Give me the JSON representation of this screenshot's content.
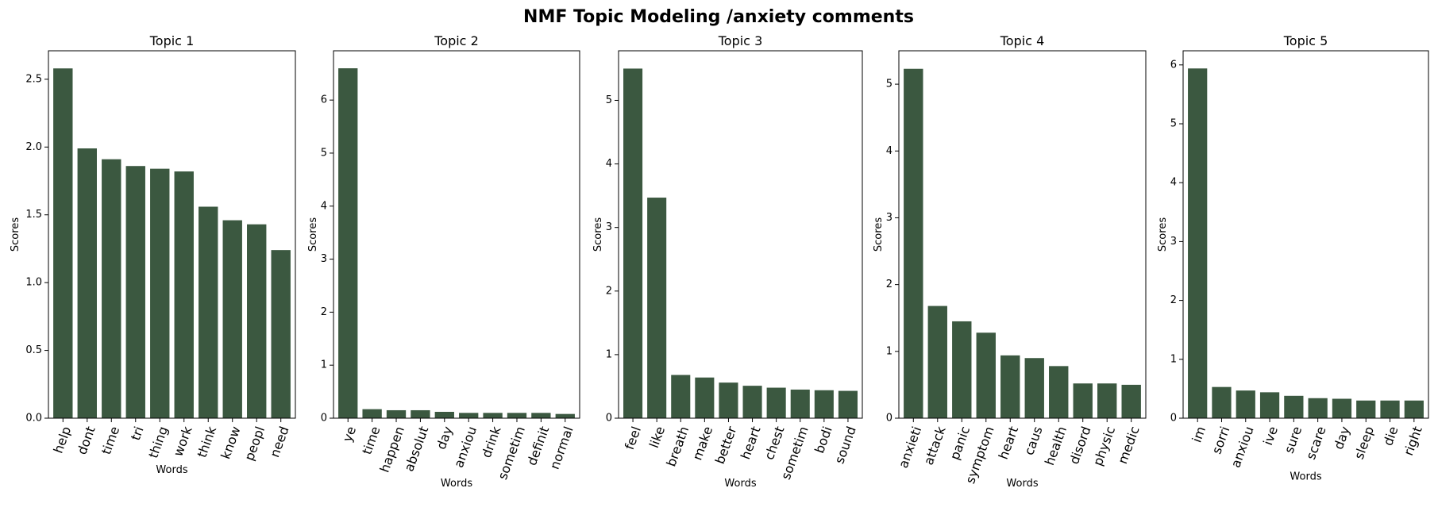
{
  "figure": {
    "suptitle": "NMF Topic Modeling /anxiety comments",
    "bar_color": "#3b5840"
  },
  "chart_data": [
    {
      "type": "bar",
      "title": "Topic 1",
      "xlabel": "Words",
      "ylabel": "Scores",
      "categories": [
        "help",
        "dont",
        "time",
        "tri",
        "thing",
        "work",
        "think",
        "know",
        "peopl",
        "need"
      ],
      "values": [
        2.58,
        1.99,
        1.91,
        1.86,
        1.84,
        1.82,
        1.56,
        1.46,
        1.43,
        1.24
      ],
      "ylim": [
        0,
        2.71
      ],
      "yticks": [
        0.0,
        0.5,
        1.0,
        1.5,
        2.0,
        2.5
      ],
      "ytick_labels": [
        "0.0",
        "0.5",
        "1.0",
        "1.5",
        "2.0",
        "2.5"
      ]
    },
    {
      "type": "bar",
      "title": "Topic 2",
      "xlabel": "Words",
      "ylabel": "Scores",
      "categories": [
        "ye",
        "time",
        "happen",
        "absolut",
        "day",
        "anxiou",
        "drink",
        "sometim",
        "definit",
        "normal"
      ],
      "values": [
        6.6,
        0.17,
        0.15,
        0.15,
        0.12,
        0.1,
        0.1,
        0.1,
        0.1,
        0.08
      ],
      "ylim": [
        0,
        6.93
      ],
      "yticks": [
        0,
        1,
        2,
        3,
        4,
        5,
        6
      ],
      "ytick_labels": [
        "0",
        "1",
        "2",
        "3",
        "4",
        "5",
        "6"
      ]
    },
    {
      "type": "bar",
      "title": "Topic 3",
      "xlabel": "Words",
      "ylabel": "Scores",
      "categories": [
        "feel",
        "like",
        "breath",
        "make",
        "better",
        "heart",
        "chest",
        "sometim",
        "bodi",
        "sound"
      ],
      "values": [
        5.5,
        3.47,
        0.68,
        0.64,
        0.56,
        0.51,
        0.48,
        0.45,
        0.44,
        0.43
      ],
      "ylim": [
        0,
        5.78
      ],
      "yticks": [
        0,
        1,
        2,
        3,
        4,
        5
      ],
      "ytick_labels": [
        "0",
        "1",
        "2",
        "3",
        "4",
        "5"
      ]
    },
    {
      "type": "bar",
      "title": "Topic 4",
      "xlabel": "Words",
      "ylabel": "Scores",
      "categories": [
        "anxieti",
        "attack",
        "panic",
        "symptom",
        "heart",
        "caus",
        "health",
        "disord",
        "physic",
        "medic"
      ],
      "values": [
        5.23,
        1.68,
        1.45,
        1.28,
        0.94,
        0.9,
        0.78,
        0.52,
        0.52,
        0.5
      ],
      "ylim": [
        0,
        5.5
      ],
      "yticks": [
        0,
        1,
        2,
        3,
        4,
        5
      ],
      "ytick_labels": [
        "0",
        "1",
        "2",
        "3",
        "4",
        "5"
      ]
    },
    {
      "type": "bar",
      "title": "Topic 5",
      "xlabel": "Words",
      "ylabel": "Scores",
      "categories": [
        "im",
        "sorri",
        "anxiou",
        "ive",
        "sure",
        "scare",
        "day",
        "sleep",
        "die",
        "right"
      ],
      "values": [
        5.94,
        0.53,
        0.47,
        0.44,
        0.38,
        0.34,
        0.33,
        0.3,
        0.3,
        0.3
      ],
      "ylim": [
        0,
        6.24
      ],
      "yticks": [
        0,
        1,
        2,
        3,
        4,
        5,
        6
      ],
      "ytick_labels": [
        "0",
        "1",
        "2",
        "3",
        "4",
        "5",
        "6"
      ]
    }
  ]
}
